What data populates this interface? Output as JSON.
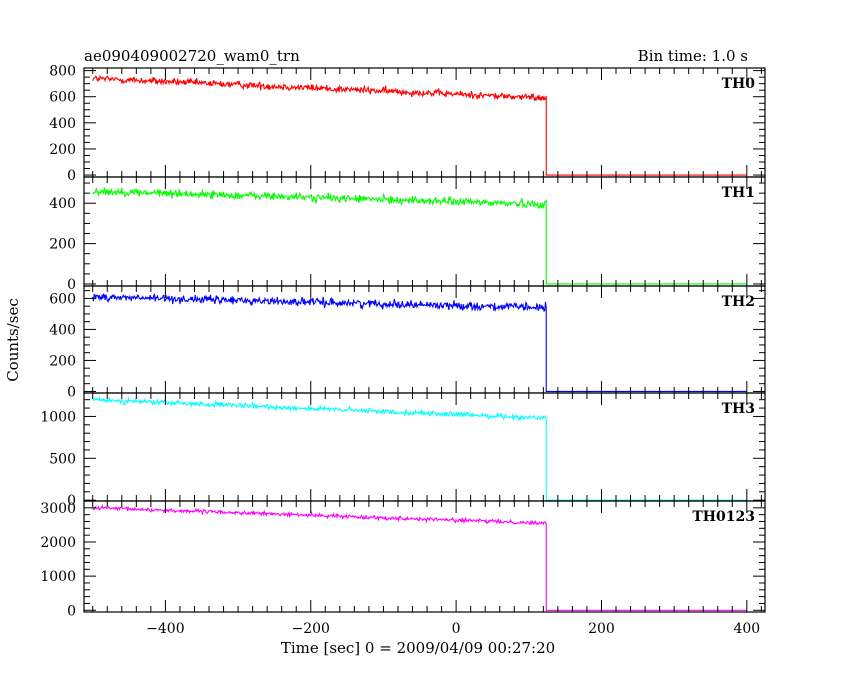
{
  "chart_data": {
    "type": "line",
    "title": "ae090409002720_wam0_trn",
    "subtitle": "Bin time: 1.0 s",
    "xlabel": "Time [sec] 0 = 2009/04/09 00:27:20",
    "ylabel": "Counts/sec",
    "xlim": [
      -512,
      425
    ],
    "x_ticks": [
      -400,
      -200,
      0,
      200,
      400
    ],
    "x_tick_labels": [
      "−400",
      "−200",
      "0",
      "200",
      "400"
    ],
    "drop_time": 124,
    "bin_time": 1.0,
    "grid": false,
    "panels": [
      {
        "name": "TH0",
        "color": "#ff0000",
        "ylim": [
          -15,
          820
        ],
        "y_ticks": [
          0,
          200,
          400,
          600,
          800
        ],
        "y_tick_labels": [
          "0",
          "200",
          "400",
          "600",
          "800"
        ],
        "y_minor_step": 50,
        "x_start": -500,
        "level_start": 740,
        "level_end": 590,
        "noise": 28,
        "after_level": 0
      },
      {
        "name": "TH1",
        "color": "#00ff00",
        "ylim": [
          -10,
          530
        ],
        "y_ticks": [
          0,
          200,
          400
        ],
        "y_tick_labels": [
          "0",
          "200",
          "400"
        ],
        "y_minor_step": 50,
        "x_start": -500,
        "level_start": 460,
        "level_end": 395,
        "noise": 20,
        "after_level": 0
      },
      {
        "name": "TH2",
        "color": "#0000ff",
        "ylim": [
          -10,
          680
        ],
        "y_ticks": [
          0,
          200,
          400,
          600
        ],
        "y_tick_labels": [
          "0",
          "200",
          "400",
          "600"
        ],
        "y_minor_step": 50,
        "x_start": -500,
        "level_start": 610,
        "level_end": 540,
        "noise": 26,
        "after_level": 0
      },
      {
        "name": "TH3",
        "color": "#00ffff",
        "ylim": [
          -10,
          1280
        ],
        "y_ticks": [
          0,
          500,
          1000
        ],
        "y_tick_labels": [
          "0",
          "500",
          "1000"
        ],
        "y_minor_step": 100,
        "x_start": -500,
        "level_start": 1200,
        "level_end": 980,
        "noise": 30,
        "after_level": 0
      },
      {
        "name": "TH0123",
        "color": "#ff00ff",
        "ylim": [
          -50,
          3200
        ],
        "y_ticks": [
          0,
          1000,
          2000,
          3000
        ],
        "y_tick_labels": [
          "0",
          "1000",
          "2000",
          "3000"
        ],
        "y_minor_step": 200,
        "x_start": -500,
        "level_start": 3000,
        "level_end": 2550,
        "noise": 55,
        "after_level": 0
      }
    ]
  }
}
